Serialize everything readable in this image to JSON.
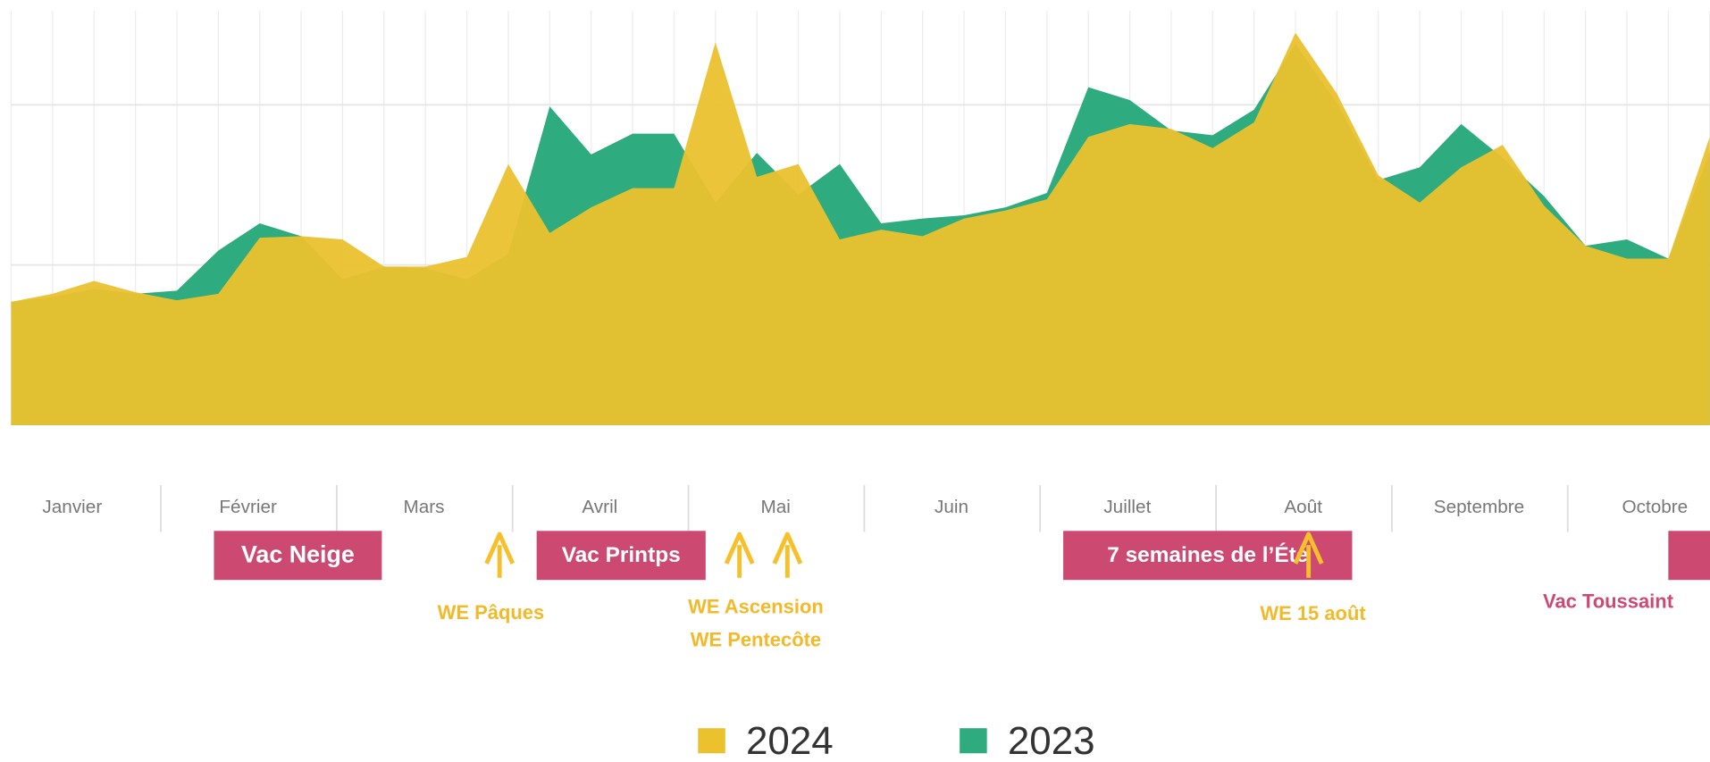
{
  "chart_data": {
    "type": "area",
    "categories": [
      null,
      null,
      null,
      null,
      null,
      null,
      null,
      null,
      null,
      null,
      null,
      null,
      null,
      null,
      null,
      null,
      null,
      null,
      null,
      null,
      null,
      null,
      null,
      null,
      null,
      null,
      null,
      null,
      null,
      null,
      null,
      null,
      null,
      null,
      null,
      null,
      null,
      null,
      null,
      null,
      null,
      null
    ],
    "series": [
      {
        "name": "2024",
        "color": "#ebc12e",
        "values": [
          0.77,
          0.82,
          0.9,
          0.83,
          0.78,
          0.82,
          1.17,
          1.18,
          1.16,
          0.99,
          0.99,
          1.05,
          1.63,
          1.2,
          1.36,
          1.48,
          1.48,
          2.39,
          1.55,
          1.63,
          1.16,
          1.22,
          1.18,
          1.29,
          1.34,
          1.41,
          1.8,
          1.88,
          1.85,
          1.73,
          1.89,
          2.45,
          2.07,
          1.56,
          1.39,
          1.61,
          1.75,
          1.37,
          1.12,
          1.04,
          1.04,
          1.8
        ]
      },
      {
        "name": "2023",
        "color": "#2eab7f",
        "values": [
          0.77,
          0.8,
          0.85,
          0.82,
          0.84,
          1.09,
          1.26,
          1.18,
          0.91,
          0.99,
          0.98,
          0.91,
          1.07,
          1.99,
          1.69,
          1.82,
          1.82,
          1.39,
          1.7,
          1.44,
          1.63,
          1.26,
          1.29,
          1.31,
          1.36,
          1.45,
          2.11,
          2.03,
          1.84,
          1.81,
          1.97,
          2.38,
          2.01,
          1.53,
          1.61,
          1.88,
          1.67,
          1.43,
          1.12,
          1.16,
          1.04,
          1.7
        ]
      }
    ],
    "ylim": [
      0,
      2.6
    ],
    "gridlines": [
      1,
      2
    ],
    "months": [
      "Janvier",
      "Février",
      "Mars",
      "Avril",
      "Mai",
      "Juin",
      "Juillet",
      "Août",
      "Septembre",
      "Octobre"
    ],
    "periods": [
      "Vac Neige",
      "Vac Printps",
      "7 semaines de l’Été"
    ],
    "period_note": "Vac Toussaint",
    "holidays": [
      "WE Pâques",
      "WE Ascension",
      "WE Pentecôte",
      "WE 15 août"
    ]
  }
}
